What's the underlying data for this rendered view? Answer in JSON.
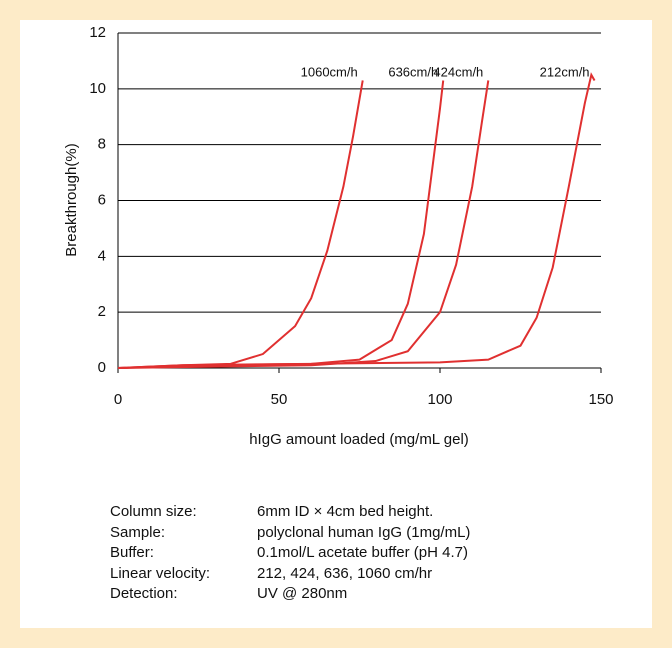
{
  "chart_data": {
    "type": "line",
    "x_label": "hIgG amount loaded (mg/mL gel)",
    "y_label": "Breakthrough(%)",
    "xlim": [
      0,
      150
    ],
    "xticks": [
      0,
      50,
      100,
      150
    ],
    "ylim": [
      0,
      12
    ],
    "yticks": [
      0,
      2,
      4,
      6,
      8,
      10,
      12
    ],
    "grid": true,
    "series": [
      {
        "name": "1060cm/h",
        "color": "#e03030",
        "x": [
          0,
          20,
          35,
          45,
          55,
          60,
          65,
          70,
          73,
          76
        ],
        "values": [
          0,
          0.1,
          0.15,
          0.5,
          1.5,
          2.5,
          4.2,
          6.5,
          8.3,
          10.3
        ]
      },
      {
        "name": "636cm/h",
        "color": "#e03030",
        "x": [
          0,
          30,
          60,
          75,
          85,
          90,
          95,
          98,
          100,
          101
        ],
        "values": [
          0,
          0.1,
          0.15,
          0.3,
          1.0,
          2.3,
          4.8,
          7.5,
          9.3,
          10.3
        ]
      },
      {
        "name": "424cm/h",
        "color": "#e03030",
        "x": [
          0,
          60,
          80,
          90,
          100,
          105,
          110,
          113,
          115
        ],
        "values": [
          0,
          0.1,
          0.25,
          0.6,
          2,
          3.7,
          6.5,
          8.8,
          10.3
        ]
      },
      {
        "name": "212cm/h",
        "color": "#e03030",
        "x": [
          0,
          20,
          60,
          100,
          115,
          125,
          130,
          135,
          140,
          145,
          147,
          148
        ],
        "values": [
          0,
          0.1,
          0.15,
          0.2,
          0.3,
          0.8,
          1.8,
          3.6,
          6.5,
          9.5,
          10.5,
          10.3
        ]
      }
    ]
  },
  "notes": {
    "rows": [
      [
        "Column size:",
        "6mm ID × 4cm bed height."
      ],
      [
        "Sample:",
        "polyclonal human IgG (1mg/mL)"
      ],
      [
        "Buffer:",
        "0.1mol/L acetate buffer (pH 4.7)"
      ],
      [
        "Linear velocity:",
        "212, 424, 636, 1060 cm/hr"
      ],
      [
        "Detection:",
        "UV @ 280nm"
      ]
    ]
  }
}
